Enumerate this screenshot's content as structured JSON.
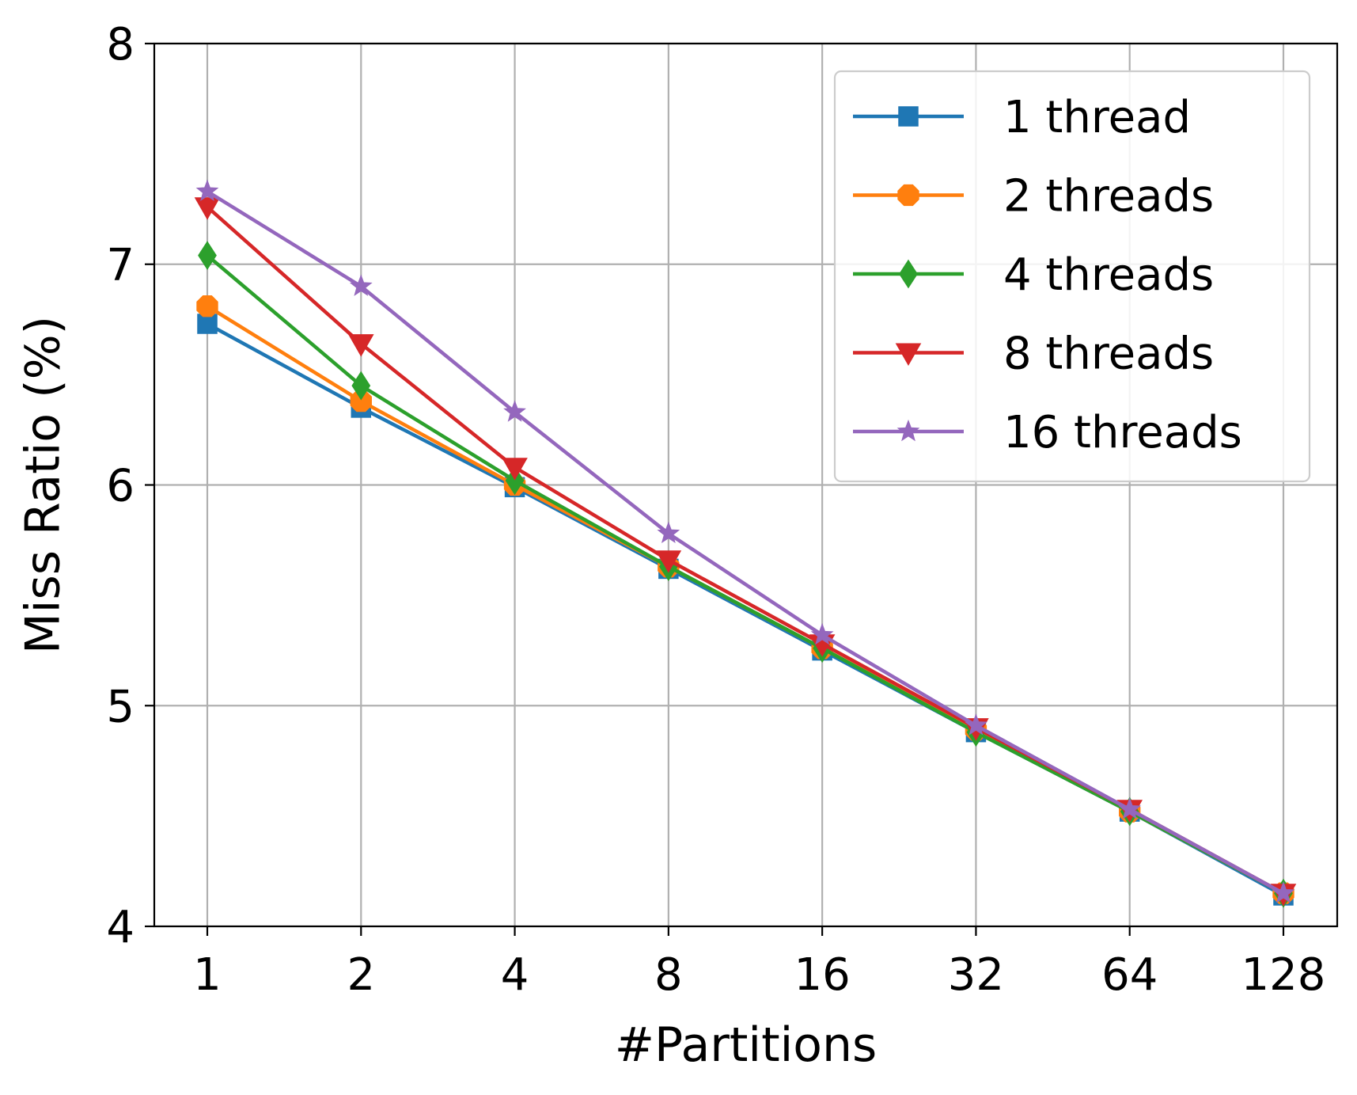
{
  "chart_data": {
    "type": "line",
    "title": "",
    "xlabel": "#Partitions",
    "ylabel": "Miss Ratio (%)",
    "x": [
      "1",
      "2",
      "4",
      "8",
      "16",
      "32",
      "64",
      "128"
    ],
    "ylim": [
      4,
      8
    ],
    "yticks": [
      "4",
      "5",
      "6",
      "7",
      "8"
    ],
    "grid": true,
    "legend_position": "upper-right",
    "series": [
      {
        "name": "1 thread",
        "color": "#1f77b4",
        "marker": "square",
        "values": [
          6.73,
          6.35,
          5.99,
          5.62,
          5.25,
          4.88,
          4.52,
          4.14
        ]
      },
      {
        "name": "2 threads",
        "color": "#ff7f0e",
        "marker": "octagon",
        "values": [
          6.81,
          6.38,
          6.0,
          5.63,
          5.26,
          4.89,
          4.52,
          4.15
        ]
      },
      {
        "name": "4 threads",
        "color": "#2ca02c",
        "marker": "diamond",
        "values": [
          7.04,
          6.45,
          6.02,
          5.63,
          5.26,
          4.88,
          4.52,
          4.15
        ]
      },
      {
        "name": "8 threads",
        "color": "#d62728",
        "marker": "triangle-down",
        "values": [
          7.26,
          6.64,
          6.08,
          5.66,
          5.28,
          4.9,
          4.53,
          4.15
        ]
      },
      {
        "name": "16 threads",
        "color": "#9467bd",
        "marker": "star",
        "values": [
          7.33,
          6.9,
          6.33,
          5.78,
          5.32,
          4.91,
          4.53,
          4.15
        ]
      }
    ]
  }
}
